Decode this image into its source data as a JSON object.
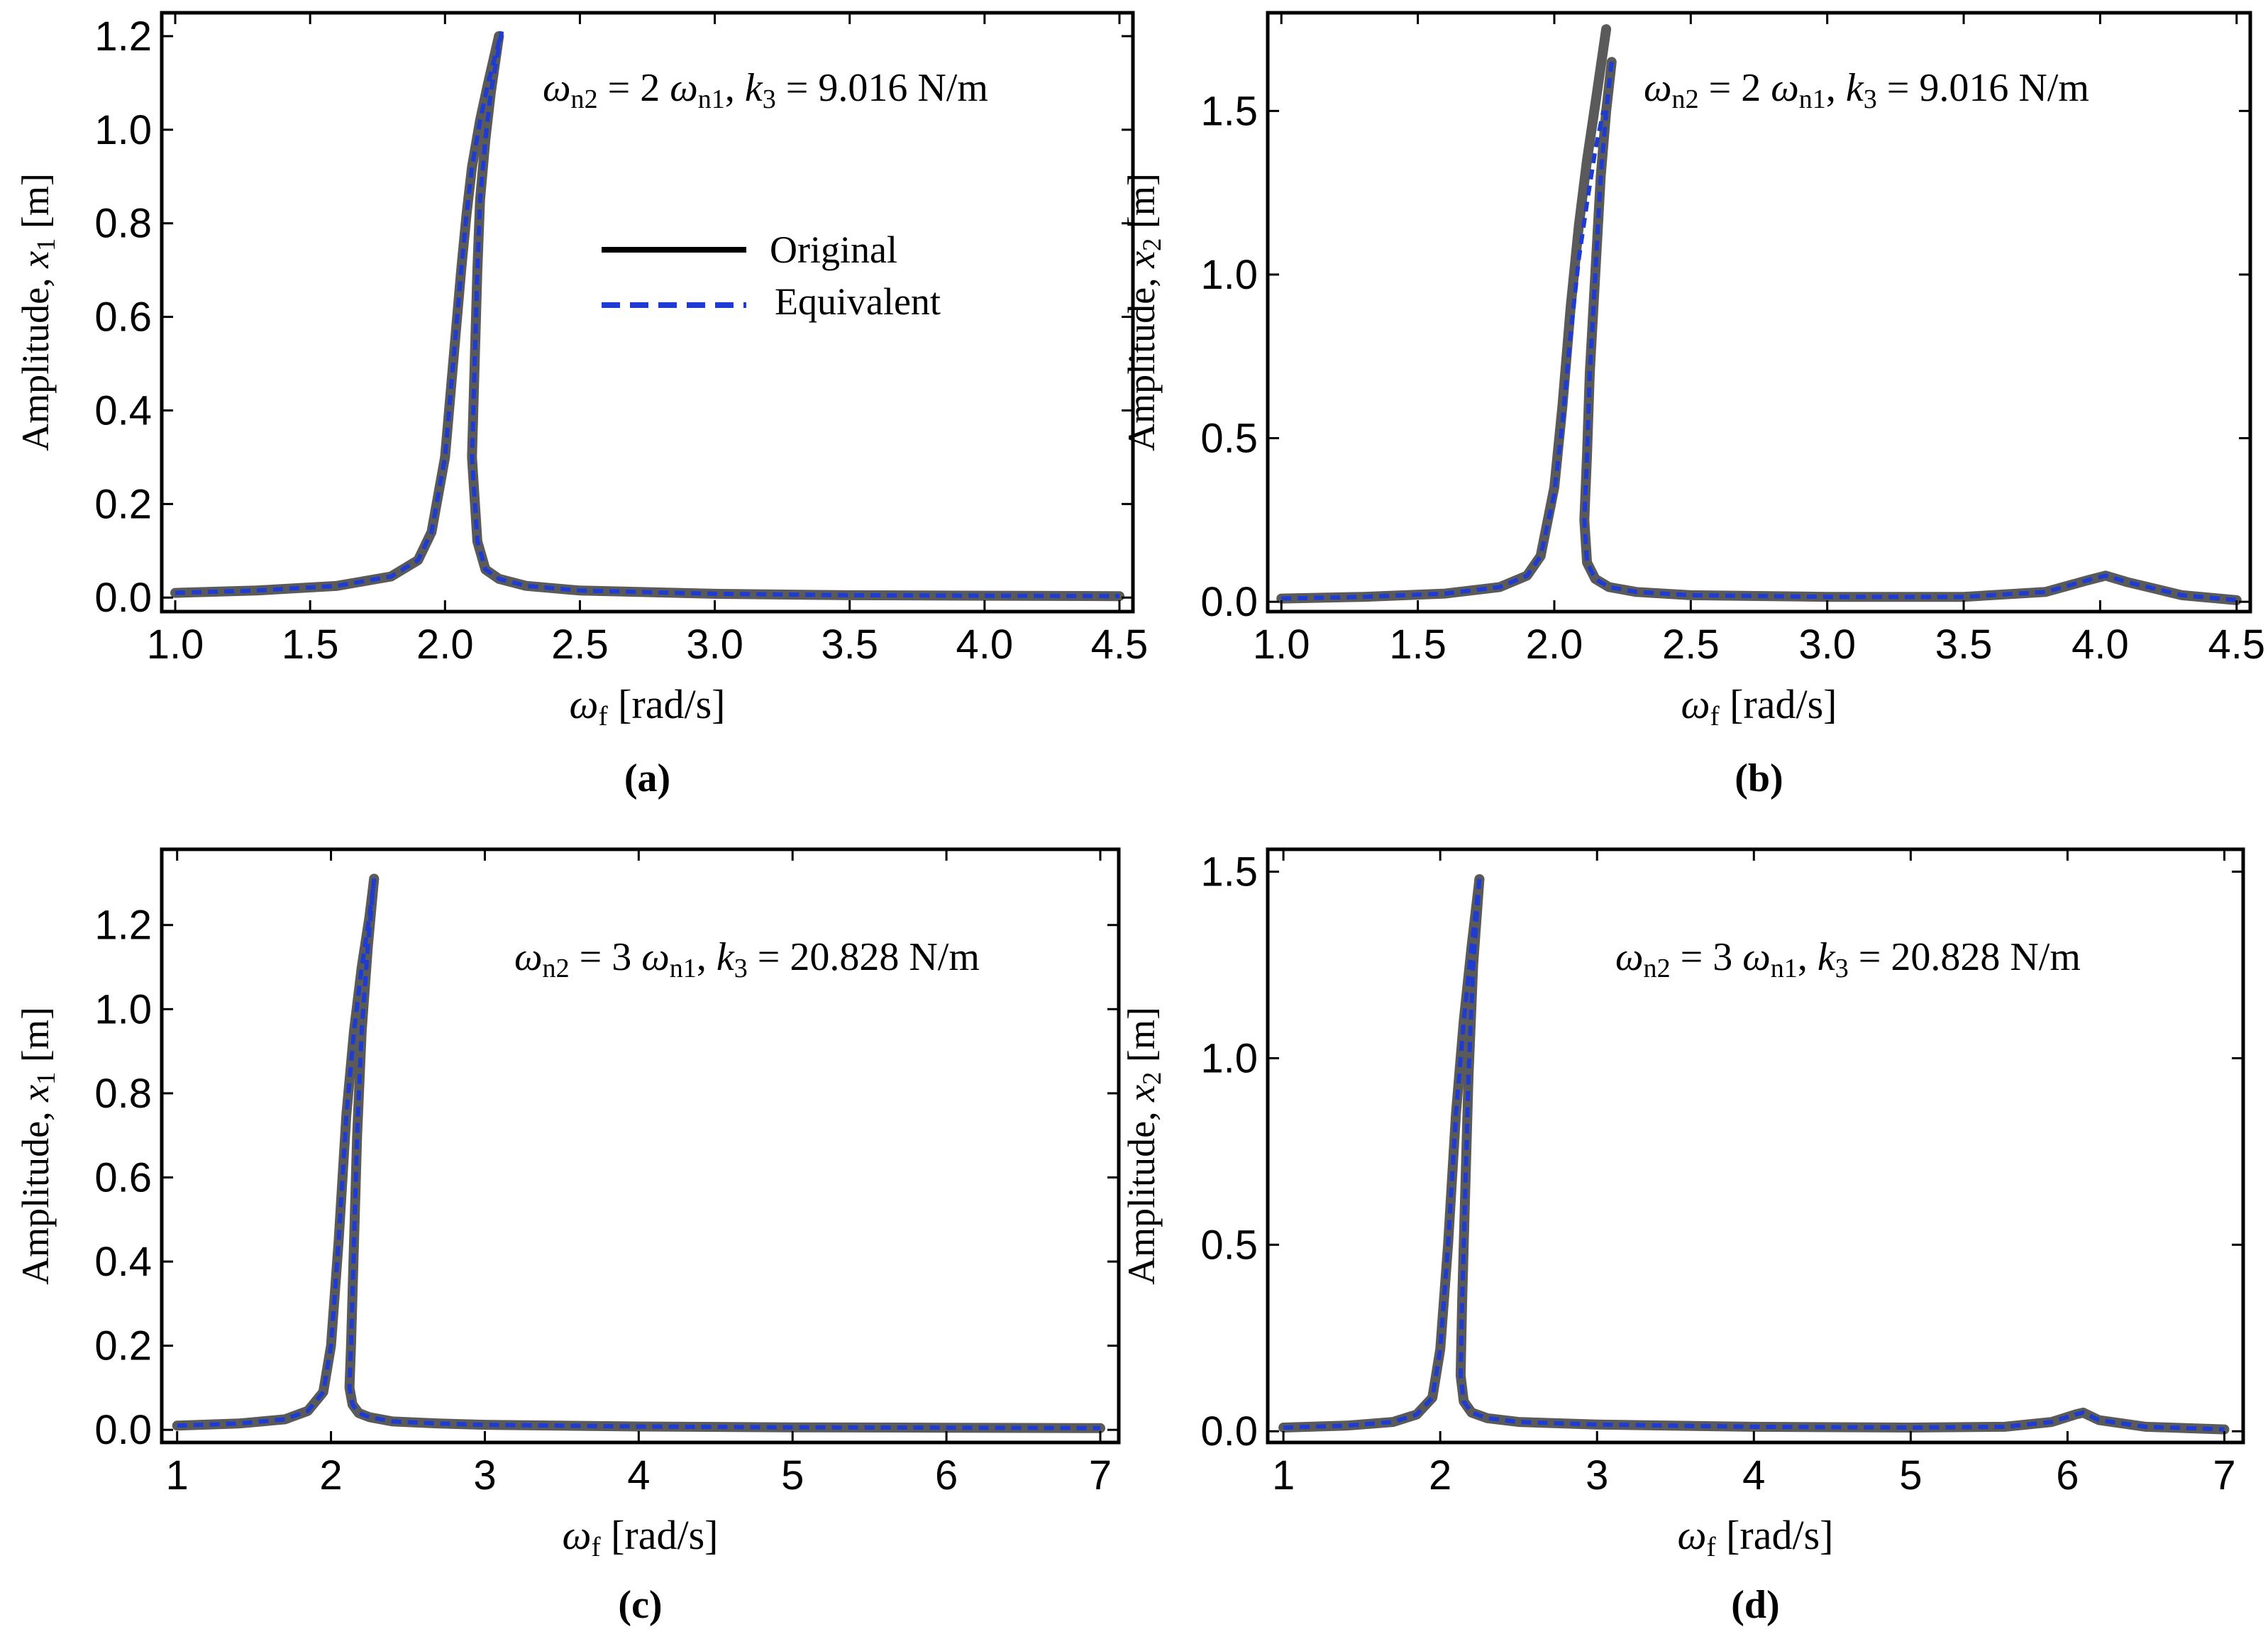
{
  "colors": {
    "original": "#5a5a5a",
    "equivalent": "#1e3cd2",
    "legend_original": "#000000",
    "frame": "#000000"
  },
  "chart_data": [
    {
      "type": "line",
      "panel": "a",
      "caption": "(a)",
      "annotation": "ωn2 = 2 ωn1, k3 = 9.016 N/m",
      "annotation_parts": [
        "ω",
        "n2",
        " = 2 ",
        "ω",
        "n1",
        ", ",
        "k",
        "3",
        " = 9.016 N/m"
      ],
      "xlabel_parts": [
        "ω",
        "f",
        " [rad/s]"
      ],
      "ylabel_parts": [
        "Amplitude, ",
        "x",
        "1",
        " [m]"
      ],
      "xlim": [
        0.95,
        4.55
      ],
      "ylim": [
        -0.03,
        1.25
      ],
      "xticks": [
        1.0,
        1.5,
        2.0,
        2.5,
        3.0,
        3.5,
        4.0,
        4.5
      ],
      "xtick_labels": [
        "1.0",
        "1.5",
        "2.0",
        "2.5",
        "3.0",
        "3.5",
        "4.0",
        "4.5"
      ],
      "yticks": [
        0.0,
        0.2,
        0.4,
        0.6,
        0.8,
        1.0,
        1.2
      ],
      "ytick_labels": [
        "0.0",
        "0.2",
        "0.4",
        "0.6",
        "0.8",
        "1.0",
        "1.2"
      ],
      "legend": {
        "entries": [
          "Original",
          "Equivalent"
        ],
        "position": "center"
      },
      "series": [
        {
          "name": "Original",
          "style": "solid",
          "x": [
            1.0,
            1.3,
            1.6,
            1.8,
            1.9,
            1.95,
            2.0,
            2.03,
            2.06,
            2.08,
            2.1,
            2.13,
            2.16,
            2.2
          ],
          "y": [
            0.01,
            0.015,
            0.025,
            0.045,
            0.08,
            0.14,
            0.3,
            0.5,
            0.7,
            0.82,
            0.92,
            1.02,
            1.1,
            1.2
          ],
          "x2": [
            2.2,
            2.17,
            2.15,
            2.13,
            2.12,
            2.11,
            2.1,
            2.12,
            2.15,
            2.2,
            2.3,
            2.5,
            3.0,
            3.5,
            4.0,
            4.5
          ],
          "y2": [
            1.2,
            1.08,
            0.98,
            0.85,
            0.7,
            0.5,
            0.3,
            0.12,
            0.06,
            0.04,
            0.025,
            0.015,
            0.008,
            0.005,
            0.004,
            0.003
          ]
        },
        {
          "name": "Equivalent",
          "style": "dashed",
          "x": [
            1.0,
            1.3,
            1.6,
            1.8,
            1.9,
            1.95,
            2.0,
            2.03,
            2.06,
            2.08,
            2.1,
            2.13,
            2.16,
            2.21
          ],
          "y": [
            0.01,
            0.015,
            0.025,
            0.045,
            0.08,
            0.14,
            0.3,
            0.5,
            0.7,
            0.82,
            0.92,
            1.02,
            1.1,
            1.21
          ],
          "x2": [
            2.21,
            2.17,
            2.15,
            2.13,
            2.12,
            2.11,
            2.1,
            2.12,
            2.15,
            2.2,
            2.3,
            2.5,
            3.0,
            3.5,
            4.0,
            4.5
          ],
          "y2": [
            1.21,
            1.08,
            0.98,
            0.85,
            0.7,
            0.5,
            0.3,
            0.12,
            0.06,
            0.04,
            0.025,
            0.015,
            0.008,
            0.005,
            0.004,
            0.003
          ]
        }
      ]
    },
    {
      "type": "line",
      "panel": "b",
      "caption": "(b)",
      "annotation": "ωn2 = 2 ωn1, k3 = 9.016 N/m",
      "annotation_parts": [
        "ω",
        "n2",
        " = 2 ",
        "ω",
        "n1",
        ", ",
        "k",
        "3",
        " = 9.016 N/m"
      ],
      "xlabel_parts": [
        "ω",
        "f",
        " [rad/s]"
      ],
      "ylabel_parts": [
        "Amplitude, ",
        "x",
        "2",
        " [m]"
      ],
      "xlim": [
        0.95,
        4.55
      ],
      "ylim": [
        -0.03,
        1.8
      ],
      "xticks": [
        1.0,
        1.5,
        2.0,
        2.5,
        3.0,
        3.5,
        4.0,
        4.5
      ],
      "xtick_labels": [
        "1.0",
        "1.5",
        "2.0",
        "2.5",
        "3.0",
        "3.5",
        "4.0",
        "4.5"
      ],
      "yticks": [
        0.0,
        0.5,
        1.0,
        1.5
      ],
      "ytick_labels": [
        "0.0",
        "0.5",
        "1.0",
        "1.5"
      ],
      "series": [
        {
          "name": "Original",
          "style": "solid",
          "x": [
            1.0,
            1.3,
            1.6,
            1.8,
            1.9,
            1.95,
            2.0,
            2.03,
            2.06,
            2.09,
            2.12,
            2.15,
            2.19
          ],
          "y": [
            0.01,
            0.015,
            0.025,
            0.045,
            0.08,
            0.14,
            0.35,
            0.6,
            0.9,
            1.15,
            1.35,
            1.52,
            1.75
          ],
          "x2": [
            2.21,
            2.19,
            2.17,
            2.15,
            2.13,
            2.12,
            2.11,
            2.12,
            2.15,
            2.2,
            2.3,
            2.5,
            3.0,
            3.5,
            3.8,
            3.95,
            4.02,
            4.1,
            4.3,
            4.5
          ],
          "y2": [
            1.65,
            1.5,
            1.3,
            1.0,
            0.7,
            0.45,
            0.25,
            0.12,
            0.07,
            0.045,
            0.03,
            0.02,
            0.015,
            0.015,
            0.03,
            0.065,
            0.08,
            0.06,
            0.02,
            0.005
          ]
        },
        {
          "name": "Equivalent",
          "style": "dashed",
          "x": [
            1.0,
            1.3,
            1.6,
            1.8,
            1.9,
            1.95,
            2.0,
            2.03,
            2.06,
            2.09,
            2.12,
            2.15,
            2.18
          ],
          "y": [
            0.01,
            0.015,
            0.025,
            0.045,
            0.08,
            0.14,
            0.33,
            0.55,
            0.82,
            1.05,
            1.22,
            1.38,
            1.5
          ],
          "x2": [
            2.21,
            2.19,
            2.17,
            2.15,
            2.13,
            2.12,
            2.11,
            2.12,
            2.15,
            2.2,
            2.3,
            2.5,
            3.0,
            3.5,
            3.8,
            3.95,
            4.02,
            4.1,
            4.3,
            4.5
          ],
          "y2": [
            1.65,
            1.5,
            1.3,
            1.0,
            0.7,
            0.45,
            0.25,
            0.12,
            0.07,
            0.045,
            0.03,
            0.02,
            0.015,
            0.015,
            0.03,
            0.065,
            0.08,
            0.06,
            0.02,
            0.005
          ]
        }
      ]
    },
    {
      "type": "line",
      "panel": "c",
      "caption": "(c)",
      "annotation": "ωn2 = 3 ωn1, k3 = 20.828 N/m",
      "annotation_parts": [
        "ω",
        "n2",
        " = 3 ",
        "ω",
        "n1",
        ", ",
        "k",
        "3",
        " = 20.828 N/m"
      ],
      "xlabel_parts": [
        "ω",
        "f",
        " [rad/s]"
      ],
      "ylabel_parts": [
        "Amplitude, ",
        "x",
        "1",
        " [m]"
      ],
      "xlim": [
        0.9,
        7.12
      ],
      "ylim": [
        -0.03,
        1.38
      ],
      "xticks": [
        1,
        2,
        3,
        4,
        5,
        6,
        7
      ],
      "xtick_labels": [
        "1",
        "2",
        "3",
        "4",
        "5",
        "6",
        "7"
      ],
      "yticks": [
        0.0,
        0.2,
        0.4,
        0.6,
        0.8,
        1.0,
        1.2
      ],
      "ytick_labels": [
        "0.0",
        "0.2",
        "0.4",
        "0.6",
        "0.8",
        "1.0",
        "1.2"
      ],
      "series": [
        {
          "name": "Original",
          "style": "solid",
          "x": [
            1.0,
            1.4,
            1.7,
            1.85,
            1.95,
            2.0,
            2.05,
            2.1,
            2.15,
            2.2,
            2.25,
            2.28
          ],
          "y": [
            0.01,
            0.015,
            0.025,
            0.045,
            0.09,
            0.2,
            0.45,
            0.75,
            0.95,
            1.1,
            1.22,
            1.31
          ],
          "x2": [
            2.28,
            2.24,
            2.2,
            2.17,
            2.15,
            2.13,
            2.12,
            2.14,
            2.18,
            2.25,
            2.4,
            2.7,
            3.0,
            4.0,
            5.0,
            6.0,
            7.0
          ],
          "y2": [
            1.31,
            1.15,
            0.95,
            0.7,
            0.45,
            0.2,
            0.1,
            0.06,
            0.04,
            0.03,
            0.02,
            0.015,
            0.012,
            0.008,
            0.006,
            0.005,
            0.004
          ]
        },
        {
          "name": "Equivalent",
          "style": "dashed",
          "x": [
            1.0,
            1.4,
            1.7,
            1.85,
            1.95,
            2.0,
            2.05,
            2.1,
            2.15,
            2.2,
            2.25,
            2.28
          ],
          "y": [
            0.01,
            0.015,
            0.025,
            0.045,
            0.09,
            0.2,
            0.45,
            0.75,
            0.95,
            1.1,
            1.22,
            1.31
          ],
          "x2": [
            2.28,
            2.24,
            2.2,
            2.17,
            2.15,
            2.13,
            2.12,
            2.14,
            2.18,
            2.25,
            2.4,
            2.7,
            3.0,
            4.0,
            5.0,
            6.0,
            7.0
          ],
          "y2": [
            1.31,
            1.15,
            0.95,
            0.7,
            0.45,
            0.2,
            0.1,
            0.06,
            0.04,
            0.03,
            0.02,
            0.015,
            0.012,
            0.008,
            0.006,
            0.005,
            0.004
          ]
        }
      ]
    },
    {
      "type": "line",
      "panel": "d",
      "caption": "(d)",
      "annotation": "ωn2 = 3 ωn1, k3 = 20.828 N/m",
      "annotation_parts": [
        "ω",
        "n2",
        " = 3 ",
        "ω",
        "n1",
        ", ",
        "k",
        "3",
        " = 20.828 N/m"
      ],
      "xlabel_parts": [
        "ω",
        "f",
        " [rad/s]"
      ],
      "ylabel_parts": [
        "Amplitude, ",
        "x",
        "2",
        " [m]"
      ],
      "xlim": [
        0.9,
        7.12
      ],
      "ylim": [
        -0.03,
        1.56
      ],
      "xticks": [
        1,
        2,
        3,
        4,
        5,
        6,
        7
      ],
      "xtick_labels": [
        "1",
        "2",
        "3",
        "4",
        "5",
        "6",
        "7"
      ],
      "yticks": [
        0.0,
        0.5,
        1.0,
        1.5
      ],
      "ytick_labels": [
        "0.0",
        "0.5",
        "1.0",
        "1.5"
      ],
      "series": [
        {
          "name": "Original",
          "style": "solid",
          "x": [
            1.0,
            1.4,
            1.7,
            1.85,
            1.95,
            2.0,
            2.05,
            2.1,
            2.15,
            2.2,
            2.25
          ],
          "y": [
            0.01,
            0.015,
            0.025,
            0.045,
            0.09,
            0.22,
            0.5,
            0.85,
            1.1,
            1.3,
            1.48
          ],
          "x2": [
            2.25,
            2.21,
            2.18,
            2.16,
            2.14,
            2.13,
            2.15,
            2.2,
            2.3,
            2.5,
            3.0,
            4.0,
            5.0,
            5.6,
            5.9,
            6.05,
            6.1,
            6.2,
            6.5,
            7.0
          ],
          "y2": [
            1.48,
            1.25,
            0.95,
            0.65,
            0.35,
            0.15,
            0.08,
            0.05,
            0.035,
            0.025,
            0.018,
            0.012,
            0.01,
            0.012,
            0.025,
            0.045,
            0.05,
            0.03,
            0.012,
            0.005
          ]
        },
        {
          "name": "Equivalent",
          "style": "dashed",
          "x": [
            1.0,
            1.4,
            1.7,
            1.85,
            1.95,
            2.0,
            2.05,
            2.1,
            2.15,
            2.2,
            2.25
          ],
          "y": [
            0.01,
            0.015,
            0.025,
            0.045,
            0.09,
            0.22,
            0.5,
            0.85,
            1.1,
            1.3,
            1.48
          ],
          "x2": [
            2.25,
            2.21,
            2.18,
            2.16,
            2.14,
            2.13,
            2.15,
            2.2,
            2.3,
            2.5,
            3.0,
            4.0,
            5.0,
            5.6,
            5.9,
            6.05,
            6.1,
            6.2,
            6.5,
            7.0
          ],
          "y2": [
            1.48,
            1.25,
            0.95,
            0.65,
            0.35,
            0.15,
            0.08,
            0.05,
            0.035,
            0.025,
            0.018,
            0.012,
            0.01,
            0.012,
            0.025,
            0.045,
            0.05,
            0.03,
            0.012,
            0.005
          ]
        }
      ]
    }
  ]
}
